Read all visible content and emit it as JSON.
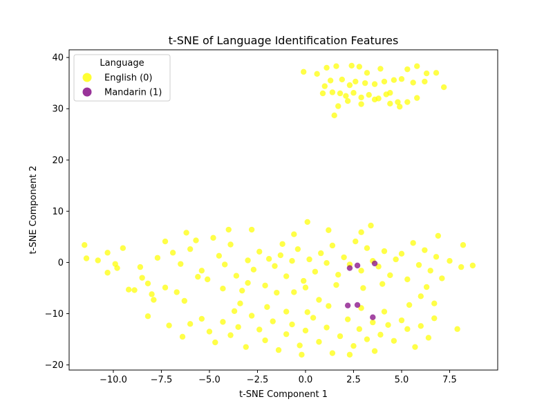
{
  "chart_data": {
    "type": "scatter",
    "title": "t-SNE of Language Identification Features",
    "xlabel": "t-SNE Component 1",
    "ylabel": "t-SNE Component 2",
    "xlim": [
      -12.3,
      10
    ],
    "ylim": [
      -21,
      41.5
    ],
    "x_ticks": [
      -10,
      -7.5,
      -5,
      -2.5,
      0,
      2.5,
      5,
      7.5
    ],
    "x_tick_labels": [
      "−10.0",
      "−7.5",
      "−5.0",
      "−2.5",
      "0.0",
      "2.5",
      "5.0",
      "7.5"
    ],
    "y_ticks": [
      -20,
      -10,
      0,
      10,
      20,
      30,
      40
    ],
    "y_tick_labels": [
      "−20",
      "−10",
      "0",
      "10",
      "20",
      "30",
      "40"
    ],
    "grid": false,
    "legend": {
      "title": "Language",
      "position": "top-left",
      "entries": [
        {
          "label": "English (0)",
          "color": "#ffff00"
        },
        {
          "label": "Mandarin (1)",
          "color": "#800080"
        }
      ]
    },
    "series": [
      {
        "name": "English (0)",
        "color": "#ffff00",
        "points": [
          [
            -0.1,
            37.2
          ],
          [
            0.6,
            36.8
          ],
          [
            1.1,
            38.0
          ],
          [
            1.6,
            38.3
          ],
          [
            2.4,
            38.4
          ],
          [
            2.8,
            38.2
          ],
          [
            3.2,
            37.0
          ],
          [
            3.9,
            37.8
          ],
          [
            5.3,
            37.7
          ],
          [
            5.8,
            38.3
          ],
          [
            6.3,
            36.9
          ],
          [
            6.8,
            37.0
          ],
          [
            1.0,
            34.4
          ],
          [
            1.3,
            35.5
          ],
          [
            1.9,
            35.7
          ],
          [
            2.3,
            34.6
          ],
          [
            2.6,
            35.3
          ],
          [
            3.1,
            35.0
          ],
          [
            3.6,
            34.8
          ],
          [
            4.1,
            35.3
          ],
          [
            4.6,
            35.6
          ],
          [
            5.0,
            35.8
          ],
          [
            5.6,
            35.1
          ],
          [
            6.2,
            35.3
          ],
          [
            7.2,
            34.2
          ],
          [
            0.9,
            33.0
          ],
          [
            1.4,
            33.2
          ],
          [
            1.8,
            33.0
          ],
          [
            2.1,
            32.5
          ],
          [
            2.5,
            33.1
          ],
          [
            2.9,
            32.2
          ],
          [
            3.3,
            32.7
          ],
          [
            3.8,
            32.0
          ],
          [
            4.2,
            32.8
          ],
          [
            4.4,
            33.1
          ],
          [
            4.8,
            31.3
          ],
          [
            5.3,
            31.3
          ],
          [
            5.8,
            32.1
          ],
          [
            1.7,
            30.5
          ],
          [
            2.2,
            31.5
          ],
          [
            2.9,
            30.9
          ],
          [
            3.6,
            31.8
          ],
          [
            4.4,
            31.0
          ],
          [
            4.9,
            30.4
          ],
          [
            1.5,
            28.7
          ],
          [
            -11.5,
            3.4
          ],
          [
            -11.4,
            0.8
          ],
          [
            -10.8,
            0.4
          ],
          [
            -10.3,
            1.9
          ],
          [
            -9.9,
            -0.3
          ],
          [
            -9.5,
            2.8
          ],
          [
            -9.2,
            -5.3
          ],
          [
            -8.9,
            -5.4
          ],
          [
            -8.6,
            -0.9
          ],
          [
            -8.2,
            -4.1
          ],
          [
            -8.0,
            -6.2
          ],
          [
            -7.7,
            0.9
          ],
          [
            -7.3,
            4.1
          ],
          [
            -6.9,
            1.9
          ],
          [
            -6.5,
            -0.3
          ],
          [
            -6.0,
            2.6
          ],
          [
            -5.7,
            4.3
          ],
          [
            -5.4,
            -1.6
          ],
          [
            -5.1,
            -3.3
          ],
          [
            -4.8,
            4.8
          ],
          [
            -4.5,
            1.3
          ],
          [
            -4.2,
            -0.4
          ],
          [
            -3.9,
            3.5
          ],
          [
            -3.6,
            -2.6
          ],
          [
            -3.3,
            -5.5
          ],
          [
            -3.0,
            0.4
          ],
          [
            -2.7,
            -1.4
          ],
          [
            -2.4,
            2.1
          ],
          [
            -2.1,
            -4.5
          ],
          [
            -1.9,
            0.7
          ],
          [
            -1.6,
            -0.7
          ],
          [
            -1.3,
            1.4
          ],
          [
            -1.0,
            -2.7
          ],
          [
            -0.7,
            0.3
          ],
          [
            -0.4,
            2.6
          ],
          [
            -0.1,
            -3.6
          ],
          [
            0.2,
            0.6
          ],
          [
            0.5,
            -1.8
          ],
          [
            0.8,
            1.8
          ],
          [
            1.1,
            -0.1
          ],
          [
            1.4,
            3.3
          ],
          [
            1.7,
            -2.4
          ],
          [
            2.0,
            1.0
          ],
          [
            2.3,
            -0.4
          ],
          [
            2.6,
            4.1
          ],
          [
            2.9,
            -1.6
          ],
          [
            3.2,
            2.8
          ],
          [
            3.5,
            0.3
          ],
          [
            3.8,
            -0.8
          ],
          [
            4.1,
            2.2
          ],
          [
            4.4,
            -2.5
          ],
          [
            4.7,
            0.6
          ],
          [
            5.0,
            1.7
          ],
          [
            5.3,
            -3.3
          ],
          [
            5.6,
            3.8
          ],
          [
            5.9,
            -0.5
          ],
          [
            6.2,
            2.4
          ],
          [
            6.5,
            -1.6
          ],
          [
            6.8,
            1.1
          ],
          [
            7.1,
            -3.1
          ],
          [
            7.5,
            0.3
          ],
          [
            8.1,
            -0.9
          ],
          [
            -6.2,
            5.8
          ],
          [
            -4.0,
            6.4
          ],
          [
            -2.8,
            6.4
          ],
          [
            -0.6,
            5.5
          ],
          [
            0.1,
            7.9
          ],
          [
            1.2,
            6.3
          ],
          [
            2.9,
            5.9
          ],
          [
            3.4,
            7.2
          ],
          [
            6.9,
            5.2
          ],
          [
            -1.2,
            3.6
          ],
          [
            8.7,
            -0.6
          ],
          [
            8.2,
            3.4
          ],
          [
            -9.8,
            -1.1
          ],
          [
            -10.3,
            -2.0
          ],
          [
            -8.5,
            -3.0
          ],
          [
            -7.9,
            -7.3
          ],
          [
            -7.3,
            -4.9
          ],
          [
            -6.7,
            -5.8
          ],
          [
            -6.3,
            -7.5
          ],
          [
            -5.6,
            -2.8
          ],
          [
            -4.3,
            -5.1
          ],
          [
            -3.0,
            -4.0
          ],
          [
            -1.5,
            -5.9
          ],
          [
            0.0,
            -4.9
          ],
          [
            1.6,
            -4.4
          ],
          [
            3.0,
            -5.0
          ],
          [
            4.0,
            -4.2
          ],
          [
            6.0,
            -6.6
          ],
          [
            6.3,
            -4.8
          ],
          [
            -8.2,
            -10.5
          ],
          [
            -7.1,
            -12.3
          ],
          [
            -6.4,
            -14.5
          ],
          [
            -6.0,
            -12.0
          ],
          [
            -5.4,
            -11.0
          ],
          [
            -5.0,
            -13.5
          ],
          [
            -4.7,
            -15.6
          ],
          [
            -4.3,
            -11.6
          ],
          [
            -3.9,
            -14.2
          ],
          [
            -3.5,
            -12.6
          ],
          [
            -3.1,
            -16.5
          ],
          [
            -2.8,
            -10.4
          ],
          [
            -2.4,
            -13.1
          ],
          [
            -2.1,
            -15.2
          ],
          [
            -1.7,
            -11.5
          ],
          [
            -1.4,
            -17.1
          ],
          [
            -1.0,
            -14.0
          ],
          [
            -0.7,
            -12.1
          ],
          [
            -0.3,
            -16.2
          ],
          [
            0.0,
            -13.3
          ],
          [
            0.4,
            -10.8
          ],
          [
            0.7,
            -15.5
          ],
          [
            1.1,
            -12.7
          ],
          [
            1.4,
            -17.7
          ],
          [
            1.8,
            -14.4
          ],
          [
            2.2,
            -11.1
          ],
          [
            2.5,
            -16.3
          ],
          [
            2.8,
            -13.0
          ],
          [
            3.2,
            -15.0
          ],
          [
            3.5,
            -11.7
          ],
          [
            3.9,
            -14.1
          ],
          [
            4.3,
            -12.2
          ],
          [
            4.6,
            -15.3
          ],
          [
            5.0,
            -11.3
          ],
          [
            5.3,
            -13.0
          ],
          [
            5.7,
            -16.5
          ],
          [
            6.0,
            -12.4
          ],
          [
            6.4,
            -14.7
          ],
          [
            6.7,
            -10.9
          ],
          [
            7.9,
            -13.0
          ],
          [
            -0.2,
            -18.0
          ],
          [
            2.3,
            -18.0
          ],
          [
            3.6,
            -17.3
          ],
          [
            -3.4,
            -8.0
          ],
          [
            -2.0,
            -8.7
          ],
          [
            -1.0,
            -9.6
          ],
          [
            0.1,
            -9.7
          ],
          [
            1.2,
            -8.5
          ],
          [
            2.9,
            -8.9
          ],
          [
            4.1,
            -9.6
          ],
          [
            5.4,
            -8.3
          ],
          [
            6.7,
            -8.0
          ],
          [
            -3.7,
            -9.5
          ],
          [
            0.7,
            -7.3
          ],
          [
            -0.6,
            -5.8
          ]
        ]
      },
      {
        "name": "Mandarin (1)",
        "color": "#800080",
        "points": [
          [
            2.3,
            -1.1
          ],
          [
            2.7,
            -0.6
          ],
          [
            3.6,
            -0.2
          ],
          [
            2.2,
            -8.4
          ],
          [
            2.7,
            -8.3
          ],
          [
            3.5,
            -10.7
          ]
        ]
      }
    ]
  }
}
